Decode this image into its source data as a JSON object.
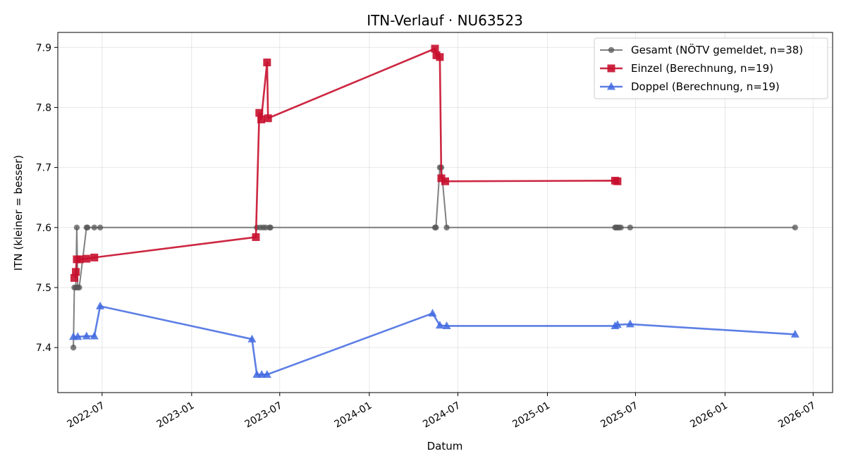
{
  "chart_data": {
    "type": "line",
    "title": "ITN-Verlauf · NU63523",
    "xlabel": "Datum",
    "ylabel": "ITN  (kleiner = besser)",
    "xlim": [
      "2022-04-01",
      "2026-08-10"
    ],
    "ylim": [
      7.325,
      7.925
    ],
    "x_ticks": [
      "2022-07-01",
      "2023-01-01",
      "2023-07-01",
      "2024-01-01",
      "2024-07-01",
      "2025-01-01",
      "2025-07-01",
      "2026-01-01",
      "2026-07-01"
    ],
    "x_tick_labels": [
      "2022-07",
      "2023-01",
      "2023-07",
      "2024-01",
      "2024-07",
      "2025-01",
      "2025-07",
      "2026-01",
      "2026-07"
    ],
    "y_ticks": [
      7.4,
      7.5,
      7.6,
      7.7,
      7.8,
      7.9
    ],
    "y_tick_labels": [
      "7.4",
      "7.5",
      "7.6",
      "7.7",
      "7.8",
      "7.9"
    ],
    "grid": true,
    "legend_position": "top-right",
    "series": [
      {
        "name": "Gesamt (NÖTV gemeldet, n=38)",
        "color": "#555555",
        "opacity": 0.75,
        "marker": "circle",
        "points": [
          [
            "2022-05-03",
            7.4
          ],
          [
            "2022-05-05",
            7.5
          ],
          [
            "2022-05-08",
            7.5
          ],
          [
            "2022-05-10",
            7.6
          ],
          [
            "2022-05-12",
            7.5
          ],
          [
            "2022-05-15",
            7.5
          ],
          [
            "2022-05-30",
            7.6
          ],
          [
            "2022-06-01",
            7.6
          ],
          [
            "2022-06-15",
            7.6
          ],
          [
            "2022-06-27",
            7.6
          ],
          [
            "2023-05-15",
            7.6
          ],
          [
            "2023-05-22",
            7.6
          ],
          [
            "2023-05-28",
            7.6
          ],
          [
            "2023-06-02",
            7.6
          ],
          [
            "2023-06-10",
            7.6
          ],
          [
            "2023-06-12",
            7.6
          ],
          [
            "2024-05-15",
            7.6
          ],
          [
            "2024-05-17",
            7.6
          ],
          [
            "2024-05-25",
            7.7
          ],
          [
            "2024-05-28",
            7.7
          ],
          [
            "2024-06-08",
            7.6
          ],
          [
            "2025-05-20",
            7.6
          ],
          [
            "2025-05-22",
            7.6
          ],
          [
            "2025-05-25",
            7.6
          ],
          [
            "2025-05-28",
            7.6
          ],
          [
            "2025-06-01",
            7.6
          ],
          [
            "2025-06-20",
            7.6
          ],
          [
            "2026-05-25",
            7.6
          ]
        ]
      },
      {
        "name": "Einzel (Berechnung, n=19)",
        "color": "#c8102e",
        "opacity": 0.9,
        "marker": "square",
        "points": [
          [
            "2022-05-05",
            7.516
          ],
          [
            "2022-05-08",
            7.526
          ],
          [
            "2022-05-10",
            7.547
          ],
          [
            "2022-05-16",
            7.547
          ],
          [
            "2022-05-30",
            7.548
          ],
          [
            "2022-06-15",
            7.55
          ],
          [
            "2023-05-13",
            7.584
          ],
          [
            "2023-05-20",
            7.791
          ],
          [
            "2023-05-24",
            7.78
          ],
          [
            "2023-06-05",
            7.875
          ],
          [
            "2023-06-07",
            7.782
          ],
          [
            "2024-05-15",
            7.898
          ],
          [
            "2024-05-18",
            7.887
          ],
          [
            "2024-05-25",
            7.884
          ],
          [
            "2024-05-28",
            7.682
          ],
          [
            "2024-06-05",
            7.677
          ],
          [
            "2025-05-20",
            7.678
          ],
          [
            "2025-05-25",
            7.677
          ]
        ]
      },
      {
        "name": "Doppel (Berechnung, n=19)",
        "color": "#4169e1",
        "opacity": 0.85,
        "marker": "triangle",
        "points": [
          [
            "2022-05-03",
            7.418
          ],
          [
            "2022-05-12",
            7.418
          ],
          [
            "2022-05-30",
            7.419
          ],
          [
            "2022-06-15",
            7.419
          ],
          [
            "2022-06-27",
            7.469
          ],
          [
            "2023-05-05",
            7.414
          ],
          [
            "2023-05-15",
            7.355
          ],
          [
            "2023-05-25",
            7.355
          ],
          [
            "2023-06-05",
            7.355
          ],
          [
            "2024-05-10",
            7.457
          ],
          [
            "2024-05-25",
            7.437
          ],
          [
            "2024-06-08",
            7.436
          ],
          [
            "2025-05-20",
            7.436
          ],
          [
            "2025-05-25",
            7.438
          ],
          [
            "2025-06-20",
            7.439
          ],
          [
            "2026-05-25",
            7.422
          ]
        ]
      }
    ]
  }
}
